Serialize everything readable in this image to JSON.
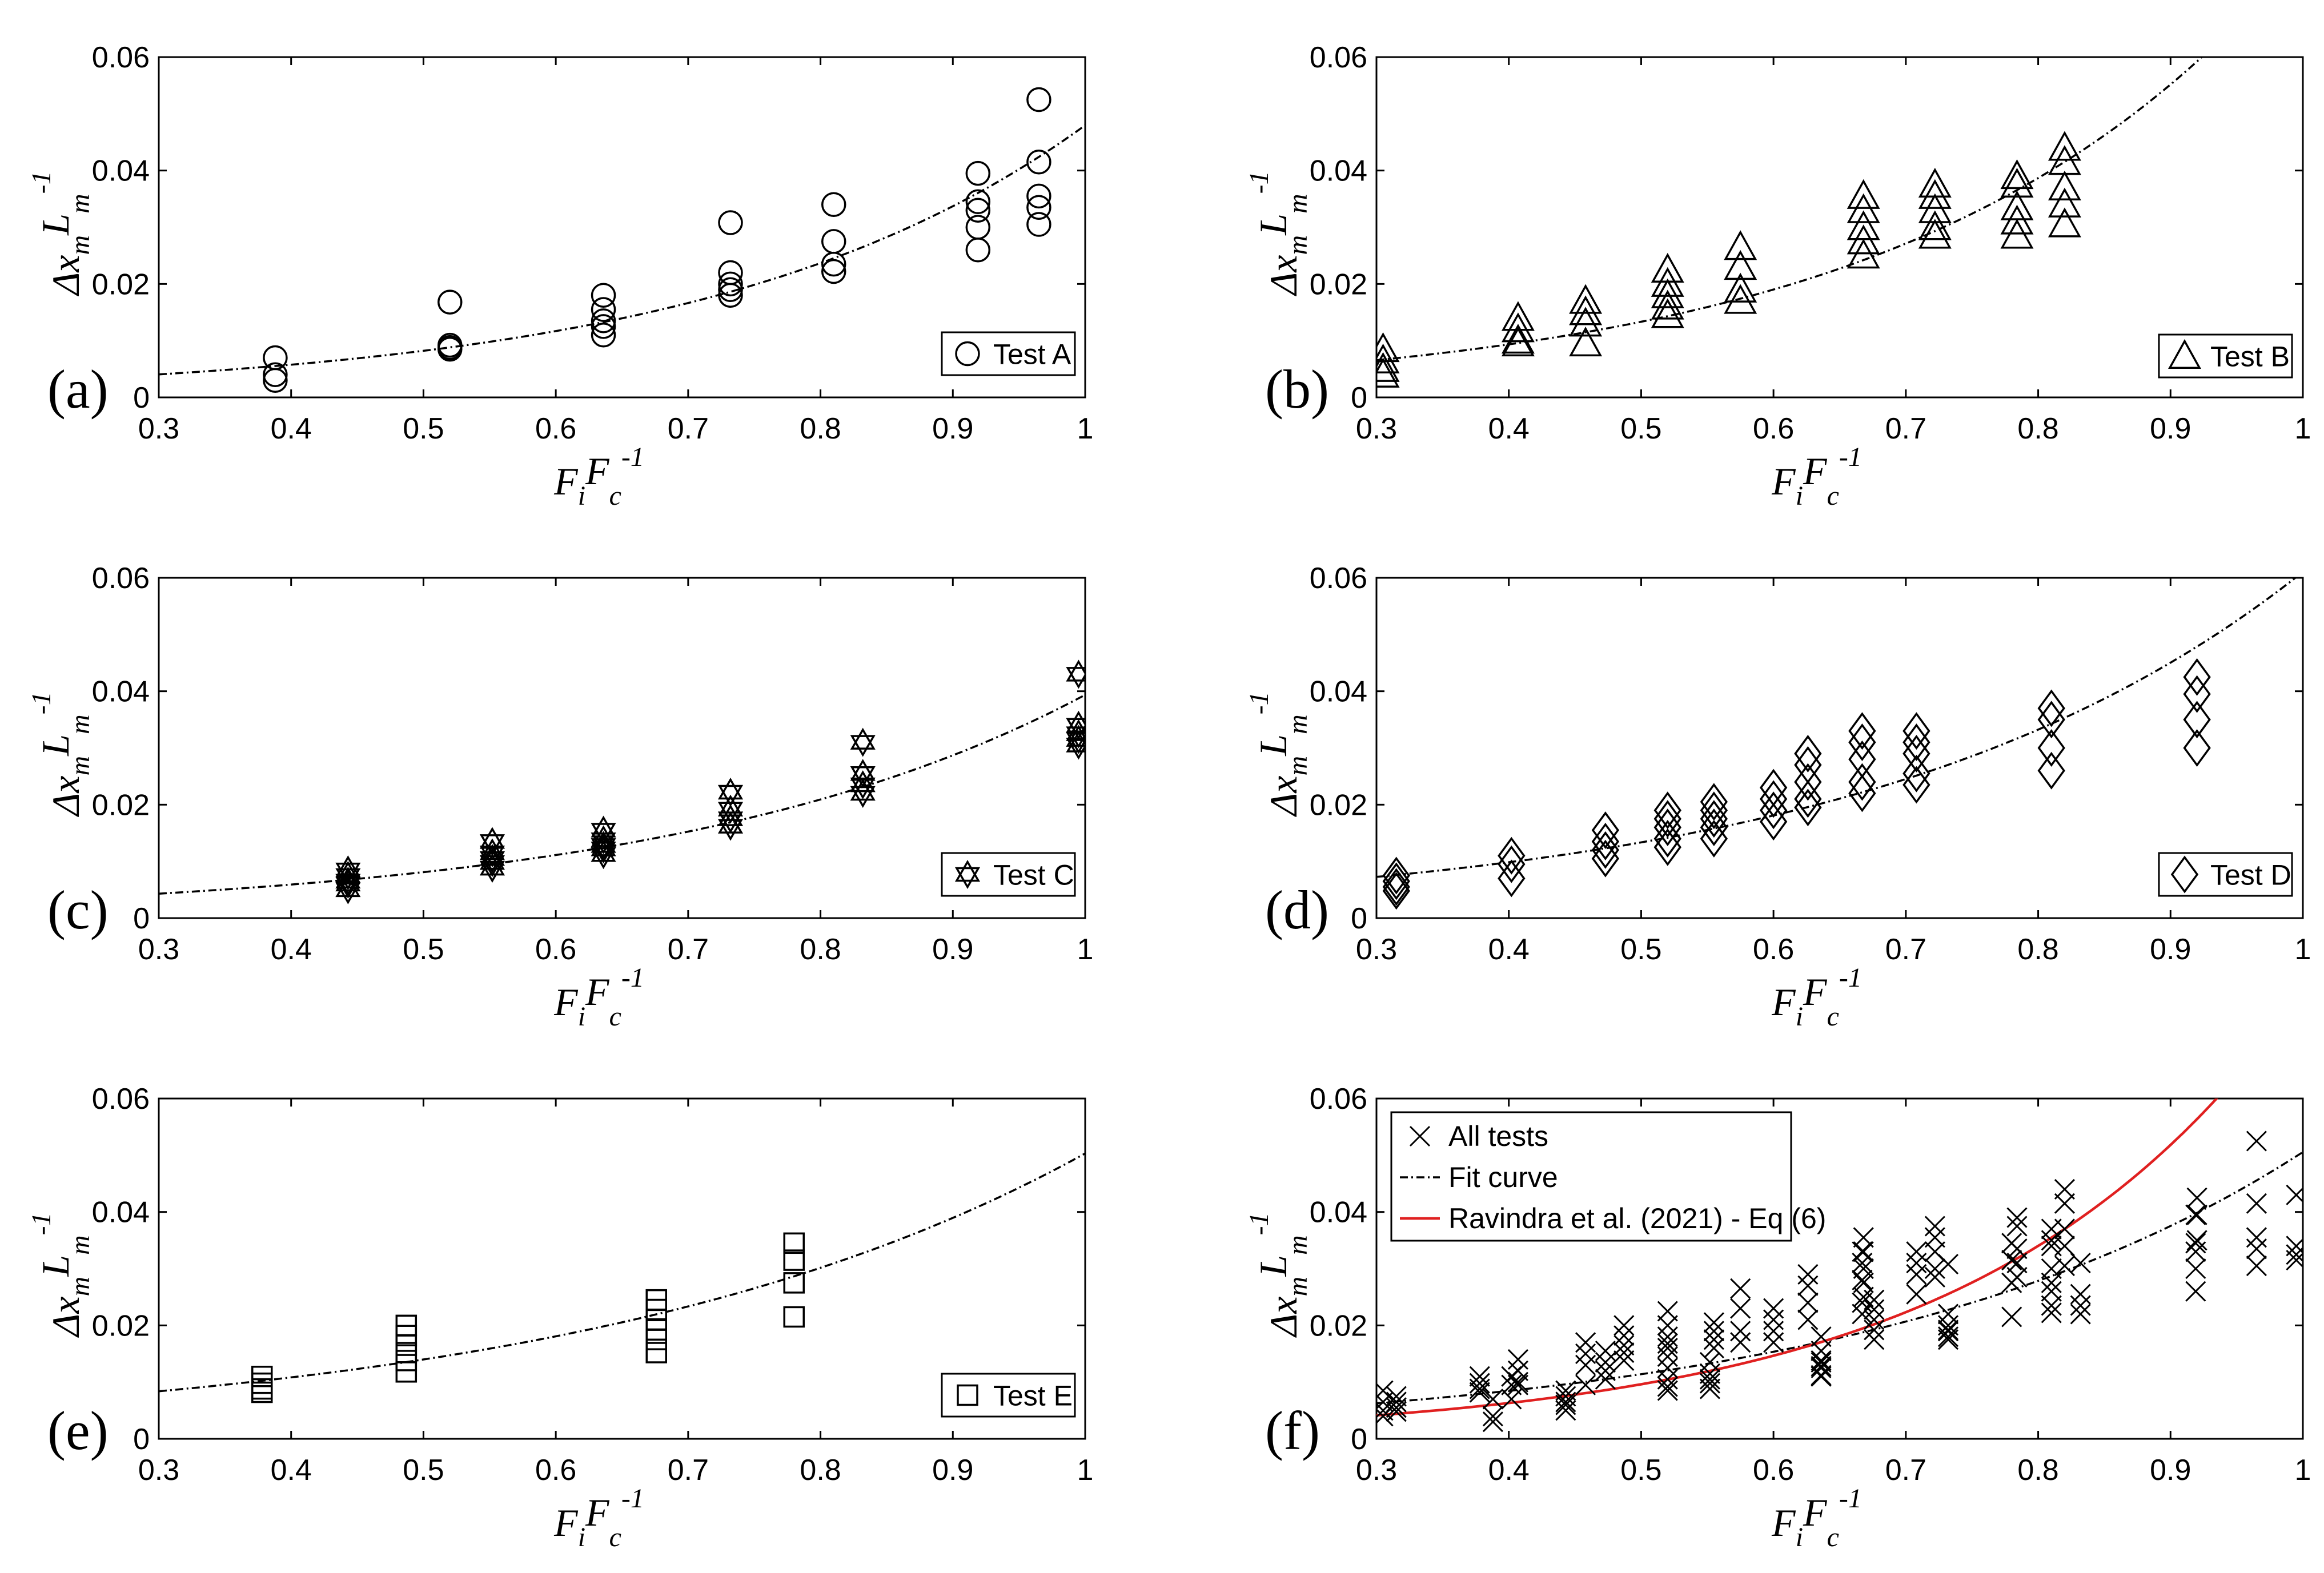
{
  "chart_data": [
    {
      "type": "scatter",
      "panel": "(a)",
      "marker": "circle",
      "xlim": [
        0.3,
        1
      ],
      "ylim": [
        0,
        0.06
      ],
      "xticks": [
        "0.3",
        "0.4",
        "0.5",
        "0.6",
        "0.7",
        "0.8",
        "0.9",
        "1"
      ],
      "yticks": [
        "0",
        "0.02",
        "0.04",
        "0.06"
      ],
      "xlabel": {
        "main": "F",
        "sub": "i",
        "main2": "F",
        "sub2": "c",
        "sup": "-1"
      },
      "ylabel": {
        "main": "Δx",
        "sub": "m",
        "main2": "L",
        "sub2": "m",
        "sup": "-1"
      },
      "legend": "top-right-bottom",
      "series": [
        {
          "name": "Test A",
          "kind": "points",
          "x": [
            0.388,
            0.388,
            0.388,
            0.52,
            0.52,
            0.52,
            0.52,
            0.636,
            0.636,
            0.636,
            0.636,
            0.636,
            0.732,
            0.732,
            0.732,
            0.732,
            0.732,
            0.81,
            0.81,
            0.81,
            0.81,
            0.919,
            0.919,
            0.919,
            0.919,
            0.919,
            0.965,
            0.965,
            0.965,
            0.965,
            0.965
          ],
          "y": [
            0.007,
            0.004,
            0.003,
            0.0168,
            0.0092,
            0.0088,
            0.0085,
            0.018,
            0.0155,
            0.0135,
            0.0125,
            0.011,
            0.0308,
            0.022,
            0.02,
            0.019,
            0.018,
            0.034,
            0.0275,
            0.0235,
            0.0222,
            0.0395,
            0.0345,
            0.033,
            0.03,
            0.026,
            0.0525,
            0.0415,
            0.0355,
            0.0335,
            0.0305
          ]
        },
        {
          "name": "Fit curve",
          "kind": "fit",
          "a": 0.001406,
          "b": 3.53
        }
      ]
    },
    {
      "type": "scatter",
      "panel": "(b)",
      "marker": "triangle",
      "xlim": [
        0.3,
        1
      ],
      "ylim": [
        0,
        0.06
      ],
      "xticks": [
        "0.3",
        "0.4",
        "0.5",
        "0.6",
        "0.7",
        "0.8",
        "0.9",
        "1"
      ],
      "yticks": [
        "0",
        "0.02",
        "0.04",
        "0.06"
      ],
      "xlabel": {
        "main": "F",
        "sub": "i",
        "main2": "F",
        "sub2": "c",
        "sup": "-1"
      },
      "ylabel": {
        "main": "Δx",
        "sub": "m",
        "main2": "L",
        "sub2": "m",
        "sup": "-1"
      },
      "series": [
        {
          "name": "Test B",
          "kind": "points",
          "x": [
            0.305,
            0.305,
            0.305,
            0.305,
            0.407,
            0.407,
            0.407,
            0.407,
            0.458,
            0.458,
            0.458,
            0.458,
            0.52,
            0.52,
            0.52,
            0.52,
            0.52,
            0.575,
            0.575,
            0.575,
            0.575,
            0.668,
            0.668,
            0.668,
            0.668,
            0.668,
            0.722,
            0.722,
            0.722,
            0.722,
            0.722,
            0.784,
            0.784,
            0.784,
            0.784,
            0.784,
            0.82,
            0.82,
            0.82,
            0.82,
            0.82
          ],
          "y": [
            0.0085,
            0.0065,
            0.005,
            0.004,
            0.014,
            0.012,
            0.01,
            0.0095,
            0.017,
            0.015,
            0.013,
            0.0095,
            0.0225,
            0.02,
            0.018,
            0.016,
            0.0145,
            0.0265,
            0.023,
            0.019,
            0.017,
            0.0355,
            0.033,
            0.03,
            0.0275,
            0.025,
            0.0375,
            0.0355,
            0.033,
            0.03,
            0.0285,
            0.039,
            0.0375,
            0.0335,
            0.031,
            0.0285,
            0.044,
            0.0415,
            0.037,
            0.034,
            0.0305
          ]
        },
        {
          "name": "Fit curve",
          "kind": "fit",
          "a": 0.00226,
          "b": 3.55
        }
      ]
    },
    {
      "type": "scatter",
      "panel": "(c)",
      "marker": "hexagram",
      "xlim": [
        0.3,
        1
      ],
      "ylim": [
        0,
        0.06
      ],
      "xticks": [
        "0.3",
        "0.4",
        "0.5",
        "0.6",
        "0.7",
        "0.8",
        "0.9",
        "1"
      ],
      "yticks": [
        "0",
        "0.02",
        "0.04",
        "0.06"
      ],
      "xlabel": {
        "main": "F",
        "sub": "i",
        "main2": "F",
        "sub2": "c",
        "sup": "-1"
      },
      "ylabel": {
        "main": "Δx",
        "sub": "m",
        "main2": "L",
        "sub2": "m",
        "sup": "-1"
      },
      "series": [
        {
          "name": "Test C",
          "kind": "points",
          "x": [
            0.443,
            0.443,
            0.443,
            0.443,
            0.443,
            0.552,
            0.552,
            0.552,
            0.552,
            0.552,
            0.636,
            0.636,
            0.636,
            0.636,
            0.636,
            0.732,
            0.732,
            0.732,
            0.732,
            0.832,
            0.832,
            0.832,
            0.832,
            0.995,
            0.995,
            0.995,
            0.995,
            0.995
          ],
          "y": [
            0.0085,
            0.0075,
            0.0065,
            0.006,
            0.005,
            0.0135,
            0.0115,
            0.0105,
            0.0098,
            0.0088,
            0.0155,
            0.0138,
            0.0128,
            0.0122,
            0.0112,
            0.0222,
            0.0192,
            0.0175,
            0.0162,
            0.031,
            0.0255,
            0.0235,
            0.022,
            0.043,
            0.034,
            0.0325,
            0.0315,
            0.0305
          ]
        },
        {
          "name": "Fit curve",
          "kind": "fit",
          "a": 0.00167,
          "b": 3.16
        }
      ]
    },
    {
      "type": "scatter",
      "panel": "(d)",
      "marker": "diamond",
      "xlim": [
        0.3,
        1
      ],
      "ylim": [
        0,
        0.06
      ],
      "xticks": [
        "0.3",
        "0.4",
        "0.5",
        "0.6",
        "0.7",
        "0.8",
        "0.9",
        "1"
      ],
      "yticks": [
        "0",
        "0.02",
        "0.04",
        "0.06"
      ],
      "xlabel": {
        "main": "F",
        "sub": "i",
        "main2": "F",
        "sub2": "c",
        "sup": "-1"
      },
      "ylabel": {
        "main": "Δx",
        "sub": "m",
        "main2": "L",
        "sub2": "m",
        "sup": "-1"
      },
      "series": [
        {
          "name": "Test D",
          "kind": "points",
          "x": [
            0.315,
            0.315,
            0.315,
            0.315,
            0.402,
            0.402,
            0.402,
            0.473,
            0.473,
            0.473,
            0.473,
            0.52,
            0.52,
            0.52,
            0.52,
            0.52,
            0.555,
            0.555,
            0.555,
            0.555,
            0.555,
            0.6,
            0.6,
            0.6,
            0.6,
            0.626,
            0.626,
            0.626,
            0.626,
            0.626,
            0.667,
            0.667,
            0.667,
            0.667,
            0.667,
            0.708,
            0.708,
            0.708,
            0.708,
            0.708,
            0.81,
            0.81,
            0.81,
            0.81,
            0.92,
            0.92,
            0.92,
            0.92
          ],
          "y": [
            0.0075,
            0.0065,
            0.0055,
            0.0048,
            0.011,
            0.0095,
            0.007,
            0.0155,
            0.0135,
            0.012,
            0.0105,
            0.019,
            0.0175,
            0.016,
            0.014,
            0.0125,
            0.0205,
            0.019,
            0.0175,
            0.016,
            0.014,
            0.023,
            0.021,
            0.019,
            0.017,
            0.029,
            0.027,
            0.024,
            0.021,
            0.0195,
            0.033,
            0.031,
            0.028,
            0.024,
            0.022,
            0.033,
            0.031,
            0.029,
            0.0255,
            0.0235,
            0.037,
            0.035,
            0.03,
            0.026,
            0.0425,
            0.0395,
            0.035,
            0.03
          ]
        },
        {
          "name": "Fit curve",
          "kind": "fit",
          "a": 0.00292,
          "b": 3.04
        }
      ]
    },
    {
      "type": "scatter",
      "panel": "(e)",
      "marker": "square",
      "xlim": [
        0.3,
        1
      ],
      "ylim": [
        0,
        0.06
      ],
      "xticks": [
        "0.3",
        "0.4",
        "0.5",
        "0.6",
        "0.7",
        "0.8",
        "0.9",
        "1"
      ],
      "yticks": [
        "0",
        "0.02",
        "0.04",
        "0.06"
      ],
      "xlabel": {
        "main": "F",
        "sub": "i",
        "main2": "F",
        "sub2": "c",
        "sup": "-1"
      },
      "ylabel": {
        "main": "Δx",
        "sub": "m",
        "main2": "L",
        "sub2": "m",
        "sup": "-1"
      },
      "series": [
        {
          "name": "Test E",
          "kind": "points",
          "x": [
            0.378,
            0.378,
            0.378,
            0.378,
            0.487,
            0.487,
            0.487,
            0.487,
            0.487,
            0.487,
            0.676,
            0.676,
            0.676,
            0.676,
            0.676,
            0.676,
            0.78,
            0.78,
            0.78,
            0.78
          ],
          "y": [
            0.011,
            0.0098,
            0.0088,
            0.0082,
            0.02,
            0.0182,
            0.0165,
            0.0152,
            0.0138,
            0.0118,
            0.0245,
            0.0228,
            0.021,
            0.0192,
            0.0175,
            0.0152,
            0.0345,
            0.0315,
            0.0275,
            0.0215
          ]
        },
        {
          "name": "Fit curve",
          "kind": "fit",
          "a": 0.00389,
          "b": 2.56
        }
      ]
    },
    {
      "type": "scatter",
      "panel": "(f)",
      "marker": "x",
      "xlim": [
        0.3,
        1
      ],
      "ylim": [
        0,
        0.06
      ],
      "xticks": [
        "0.3",
        "0.4",
        "0.5",
        "0.6",
        "0.7",
        "0.8",
        "0.9",
        "1"
      ],
      "yticks": [
        "0",
        "0.02",
        "0.04",
        "0.06"
      ],
      "xlabel": {
        "main": "F",
        "sub": "i",
        "main2": "F",
        "sub2": "c",
        "sup": "-1"
      },
      "ylabel": {
        "main": "Δx",
        "sub": "m",
        "main2": "L",
        "sub2": "m",
        "sup": "-1"
      },
      "legend": "top-left",
      "series": [
        {
          "name": "All tests",
          "kind": "points",
          "x": [
            0.305,
            0.305,
            0.305,
            0.305,
            0.315,
            0.315,
            0.315,
            0.315,
            0.378,
            0.378,
            0.378,
            0.378,
            0.388,
            0.388,
            0.388,
            0.402,
            0.402,
            0.402,
            0.407,
            0.407,
            0.407,
            0.407,
            0.443,
            0.443,
            0.443,
            0.443,
            0.443,
            0.458,
            0.458,
            0.458,
            0.458,
            0.473,
            0.473,
            0.473,
            0.473,
            0.487,
            0.487,
            0.487,
            0.487,
            0.487,
            0.52,
            0.52,
            0.52,
            0.52,
            0.52,
            0.52,
            0.52,
            0.52,
            0.52,
            0.52,
            0.552,
            0.552,
            0.552,
            0.552,
            0.552,
            0.555,
            0.555,
            0.555,
            0.555,
            0.575,
            0.575,
            0.575,
            0.575,
            0.6,
            0.6,
            0.6,
            0.6,
            0.626,
            0.626,
            0.626,
            0.626,
            0.636,
            0.636,
            0.636,
            0.636,
            0.636,
            0.636,
            0.636,
            0.636,
            0.667,
            0.667,
            0.667,
            0.667,
            0.667,
            0.668,
            0.668,
            0.668,
            0.668,
            0.668,
            0.676,
            0.676,
            0.676,
            0.676,
            0.676,
            0.708,
            0.708,
            0.708,
            0.708,
            0.722,
            0.722,
            0.722,
            0.722,
            0.722,
            0.732,
            0.732,
            0.732,
            0.732,
            0.732,
            0.732,
            0.732,
            0.78,
            0.78,
            0.78,
            0.78,
            0.784,
            0.784,
            0.784,
            0.784,
            0.784,
            0.81,
            0.81,
            0.81,
            0.81,
            0.81,
            0.81,
            0.81,
            0.81,
            0.82,
            0.82,
            0.82,
            0.82,
            0.82,
            0.832,
            0.832,
            0.832,
            0.832,
            0.919,
            0.919,
            0.919,
            0.919,
            0.919,
            0.92,
            0.92,
            0.92,
            0.965,
            0.965,
            0.965,
            0.965,
            0.965,
            0.995,
            0.995,
            0.995,
            0.995
          ],
          "y": [
            0.0085,
            0.0065,
            0.005,
            0.004,
            0.0075,
            0.0065,
            0.0055,
            0.0048,
            0.011,
            0.0098,
            0.0088,
            0.0082,
            0.007,
            0.004,
            0.003,
            0.011,
            0.0095,
            0.007,
            0.014,
            0.012,
            0.01,
            0.0095,
            0.0085,
            0.0075,
            0.0065,
            0.006,
            0.005,
            0.017,
            0.015,
            0.013,
            0.0095,
            0.0155,
            0.0135,
            0.012,
            0.0105,
            0.02,
            0.0182,
            0.0165,
            0.0152,
            0.0138,
            0.0225,
            0.02,
            0.018,
            0.016,
            0.0145,
            0.0168,
            0.0125,
            0.0105,
            0.0092,
            0.0085,
            0.0135,
            0.0115,
            0.0105,
            0.0098,
            0.0088,
            0.0205,
            0.019,
            0.0175,
            0.016,
            0.0265,
            0.023,
            0.019,
            0.017,
            0.023,
            0.021,
            0.019,
            0.017,
            0.029,
            0.027,
            0.024,
            0.021,
            0.018,
            0.0155,
            0.0135,
            0.0125,
            0.011,
            0.0138,
            0.0128,
            0.0112,
            0.033,
            0.031,
            0.028,
            0.024,
            0.022,
            0.0355,
            0.033,
            0.03,
            0.0275,
            0.025,
            0.0245,
            0.0228,
            0.021,
            0.0192,
            0.0175,
            0.033,
            0.031,
            0.029,
            0.0255,
            0.0375,
            0.0355,
            0.033,
            0.03,
            0.0285,
            0.0308,
            0.022,
            0.02,
            0.019,
            0.018,
            0.0192,
            0.0175,
            0.0345,
            0.0315,
            0.0275,
            0.0215,
            0.039,
            0.0375,
            0.0335,
            0.031,
            0.0285,
            0.034,
            0.0275,
            0.0235,
            0.0222,
            0.037,
            0.035,
            0.03,
            0.026,
            0.044,
            0.0415,
            0.037,
            0.034,
            0.0305,
            0.031,
            0.0255,
            0.0235,
            0.022,
            0.0395,
            0.0345,
            0.033,
            0.03,
            0.026,
            0.0425,
            0.0395,
            0.035,
            0.0525,
            0.0415,
            0.0355,
            0.0335,
            0.0305,
            0.043,
            0.034,
            0.0325,
            0.0315
          ]
        },
        {
          "name": "Fit curve",
          "kind": "fit",
          "a": 0.002568,
          "b": 2.98
        },
        {
          "name": "Ravindra et al. (2021) - Eq (6)",
          "kind": "fit",
          "a": 0.001172,
          "b": 4.21,
          "color": "#e02020"
        }
      ]
    }
  ]
}
